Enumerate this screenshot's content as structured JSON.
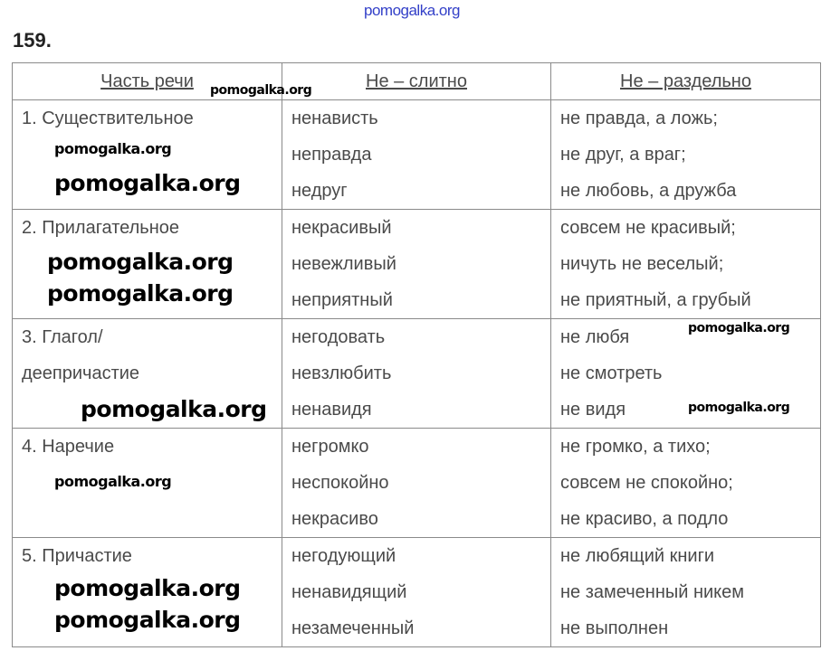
{
  "watermark": "pomogalka.org",
  "exercise_number": "159.",
  "table": {
    "headers": [
      "Часть речи",
      "Не – слитно",
      "Не – раздельно"
    ],
    "rows": [
      {
        "part": [
          "1. Существительное"
        ],
        "together": [
          "ненависть",
          "неправда",
          "недруг"
        ],
        "separate": [
          "не правда, а ложь;",
          "не друг, а враг;",
          "не любовь, а дружба"
        ]
      },
      {
        "part": [
          "2. Прилагательное"
        ],
        "together": [
          "некрасивый",
          "невежливый",
          "неприятный"
        ],
        "separate": [
          "совсем не красивый;",
          "ничуть не веселый;",
          "не приятный, а грубый"
        ]
      },
      {
        "part": [
          "3. Глагол/",
          "деепричастие"
        ],
        "together": [
          "негодовать",
          "невзлюбить",
          "ненавидя"
        ],
        "separate": [
          "не любя",
          "не смотреть",
          "не видя"
        ]
      },
      {
        "part": [
          "4. Наречие"
        ],
        "together": [
          "негромко",
          "неспокойно",
          "некрасиво"
        ],
        "separate": [
          "не громко, а тихо;",
          "совсем не спокойно;",
          "не красиво, а подло"
        ]
      },
      {
        "part": [
          "5. Причастие"
        ],
        "together": [
          "негодующий",
          "ненавидящий",
          "незамеченный"
        ],
        "separate": [
          "не любящий книги",
          "не замеченный никем",
          "не выполнен"
        ]
      }
    ]
  }
}
